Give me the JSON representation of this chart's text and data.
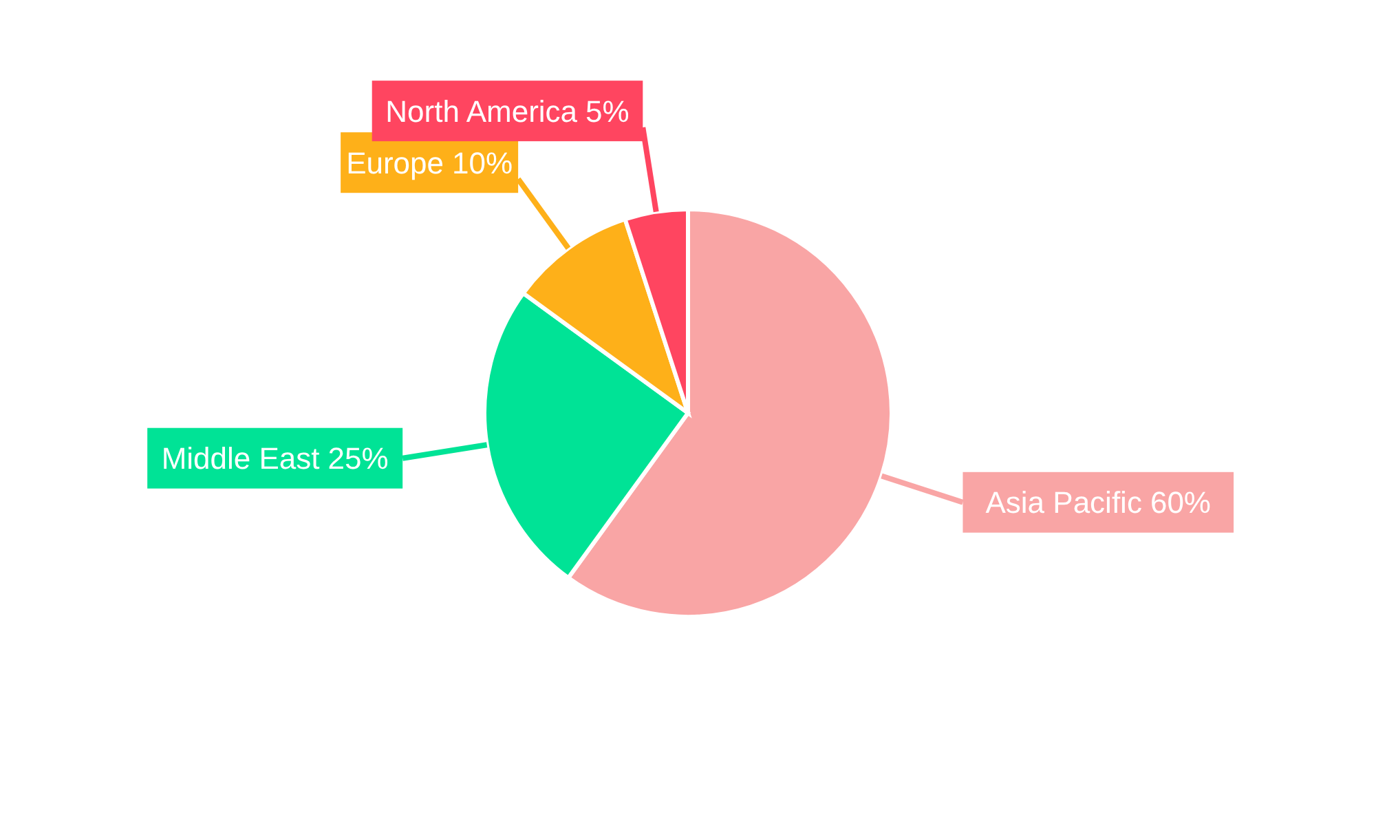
{
  "chart_data": {
    "type": "pie",
    "categories": [
      "Asia Pacific",
      "Middle East",
      "Europe",
      "North America"
    ],
    "values": [
      60,
      25,
      10,
      5
    ],
    "value_labels": [
      "60%",
      "25%",
      "10%",
      "5%"
    ],
    "colors": [
      "#f9a5a5",
      "#00e396",
      "#feb019",
      "#ff4560"
    ]
  }
}
